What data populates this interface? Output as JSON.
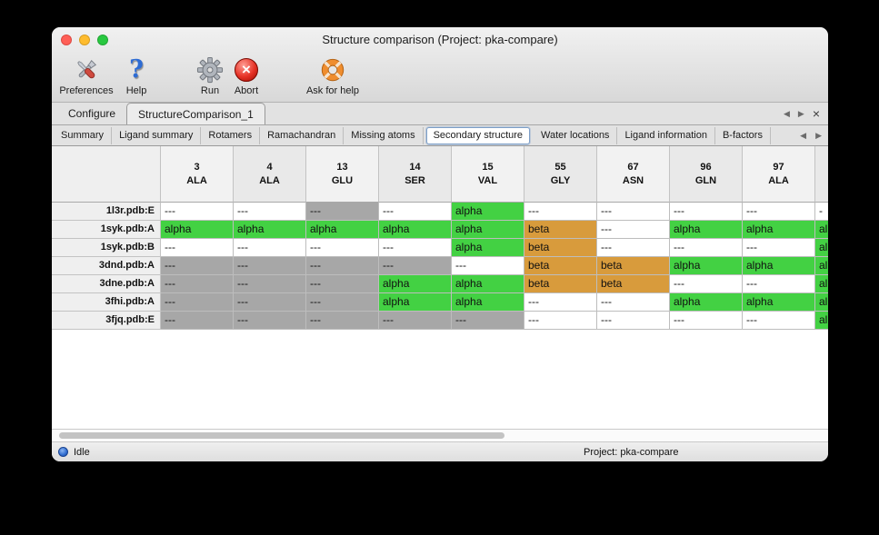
{
  "window": {
    "title": "Structure comparison (Project: pka-compare)"
  },
  "toolbar": {
    "items": [
      {
        "id": "preferences",
        "label": "Preferences",
        "icon": "tools-icon"
      },
      {
        "id": "help",
        "label": "Help",
        "icon": "question-mark-icon"
      },
      {
        "id": "run",
        "label": "Run",
        "icon": "gear-icon"
      },
      {
        "id": "abort",
        "label": "Abort",
        "icon": "abort-icon"
      },
      {
        "id": "ask-for-help",
        "label": "Ask for help",
        "icon": "lifebuoy-icon"
      }
    ]
  },
  "document_tabs": {
    "items": [
      {
        "label": "Configure",
        "active": false
      },
      {
        "label": "StructureComparison_1",
        "active": true
      }
    ],
    "prev_label": "◀",
    "next_label": "▶",
    "close_label": "×"
  },
  "view_tabs": {
    "items": [
      {
        "label": "Summary",
        "selected": false
      },
      {
        "label": "Ligand summary",
        "selected": false
      },
      {
        "label": "Rotamers",
        "selected": false
      },
      {
        "label": "Ramachandran",
        "selected": false
      },
      {
        "label": "Missing atoms",
        "selected": false
      },
      {
        "label": "Secondary structure",
        "selected": true
      },
      {
        "label": "Water locations",
        "selected": false
      },
      {
        "label": "Ligand information",
        "selected": false
      },
      {
        "label": "B-factors",
        "selected": false
      }
    ],
    "prev_label": "◀",
    "next_label": "▶"
  },
  "secondary_structure_table": {
    "columns": [
      {
        "num": "3",
        "res": "ALA"
      },
      {
        "num": "4",
        "res": "ALA"
      },
      {
        "num": "13",
        "res": "GLU"
      },
      {
        "num": "14",
        "res": "SER"
      },
      {
        "num": "15",
        "res": "VAL"
      },
      {
        "num": "55",
        "res": "GLY"
      },
      {
        "num": "67",
        "res": "ASN"
      },
      {
        "num": "96",
        "res": "GLN"
      },
      {
        "num": "97",
        "res": "ALA"
      },
      {
        "num": "",
        "res": "",
        "clipped": true
      }
    ],
    "rows": [
      {
        "label": "1l3r.pdb:E",
        "cells": [
          {
            "text": "---",
            "bg": "white"
          },
          {
            "text": "---",
            "bg": "white"
          },
          {
            "text": "---",
            "bg": "gray"
          },
          {
            "text": "---",
            "bg": "white"
          },
          {
            "text": "alpha",
            "bg": "green"
          },
          {
            "text": "---",
            "bg": "white"
          },
          {
            "text": "---",
            "bg": "white"
          },
          {
            "text": "---",
            "bg": "white"
          },
          {
            "text": "---",
            "bg": "white"
          },
          {
            "text": "-",
            "bg": "white"
          }
        ]
      },
      {
        "label": "1syk.pdb:A",
        "cells": [
          {
            "text": "alpha",
            "bg": "green"
          },
          {
            "text": "alpha",
            "bg": "green"
          },
          {
            "text": "alpha",
            "bg": "green"
          },
          {
            "text": "alpha",
            "bg": "green"
          },
          {
            "text": "alpha",
            "bg": "green"
          },
          {
            "text": "beta",
            "bg": "orange"
          },
          {
            "text": "---",
            "bg": "white"
          },
          {
            "text": "alpha",
            "bg": "green"
          },
          {
            "text": "alpha",
            "bg": "green"
          },
          {
            "text": "al",
            "bg": "green"
          }
        ]
      },
      {
        "label": "1syk.pdb:B",
        "cells": [
          {
            "text": "---",
            "bg": "white"
          },
          {
            "text": "---",
            "bg": "white"
          },
          {
            "text": "---",
            "bg": "white"
          },
          {
            "text": "---",
            "bg": "white"
          },
          {
            "text": "alpha",
            "bg": "green"
          },
          {
            "text": "beta",
            "bg": "orange"
          },
          {
            "text": "---",
            "bg": "white"
          },
          {
            "text": "---",
            "bg": "white"
          },
          {
            "text": "---",
            "bg": "white"
          },
          {
            "text": "al",
            "bg": "green"
          }
        ]
      },
      {
        "label": "3dnd.pdb:A",
        "cells": [
          {
            "text": "---",
            "bg": "gray"
          },
          {
            "text": "---",
            "bg": "gray"
          },
          {
            "text": "---",
            "bg": "gray"
          },
          {
            "text": "---",
            "bg": "gray"
          },
          {
            "text": "---",
            "bg": "white"
          },
          {
            "text": "beta",
            "bg": "orange"
          },
          {
            "text": "beta",
            "bg": "orange"
          },
          {
            "text": "alpha",
            "bg": "green"
          },
          {
            "text": "alpha",
            "bg": "green"
          },
          {
            "text": "al",
            "bg": "green"
          }
        ]
      },
      {
        "label": "3dne.pdb:A",
        "cells": [
          {
            "text": "---",
            "bg": "gray"
          },
          {
            "text": "---",
            "bg": "gray"
          },
          {
            "text": "---",
            "bg": "gray"
          },
          {
            "text": "alpha",
            "bg": "green"
          },
          {
            "text": "alpha",
            "bg": "green"
          },
          {
            "text": "beta",
            "bg": "orange"
          },
          {
            "text": "beta",
            "bg": "orange"
          },
          {
            "text": "---",
            "bg": "white"
          },
          {
            "text": "---",
            "bg": "white"
          },
          {
            "text": "al",
            "bg": "green"
          }
        ]
      },
      {
        "label": "3fhi.pdb:A",
        "cells": [
          {
            "text": "---",
            "bg": "gray"
          },
          {
            "text": "---",
            "bg": "gray"
          },
          {
            "text": "---",
            "bg": "gray"
          },
          {
            "text": "alpha",
            "bg": "green"
          },
          {
            "text": "alpha",
            "bg": "green"
          },
          {
            "text": "---",
            "bg": "white"
          },
          {
            "text": "---",
            "bg": "white"
          },
          {
            "text": "alpha",
            "bg": "green"
          },
          {
            "text": "alpha",
            "bg": "green"
          },
          {
            "text": "al",
            "bg": "green"
          }
        ]
      },
      {
        "label": "3fjq.pdb:E",
        "cells": [
          {
            "text": "---",
            "bg": "gray"
          },
          {
            "text": "---",
            "bg": "gray"
          },
          {
            "text": "---",
            "bg": "gray"
          },
          {
            "text": "---",
            "bg": "gray"
          },
          {
            "text": "---",
            "bg": "gray"
          },
          {
            "text": "---",
            "bg": "white"
          },
          {
            "text": "---",
            "bg": "white"
          },
          {
            "text": "---",
            "bg": "white"
          },
          {
            "text": "---",
            "bg": "white"
          },
          {
            "text": "al",
            "bg": "green"
          }
        ]
      }
    ]
  },
  "statusbar": {
    "status": "Idle",
    "project": "Project: pka-compare"
  },
  "colors": {
    "alpha_green": "#43d143",
    "beta_orange": "#d89b3c",
    "missing_gray": "#a7a7a7",
    "cell_white": "#ffffff",
    "status_dot_blue": "#2f6cd0"
  }
}
